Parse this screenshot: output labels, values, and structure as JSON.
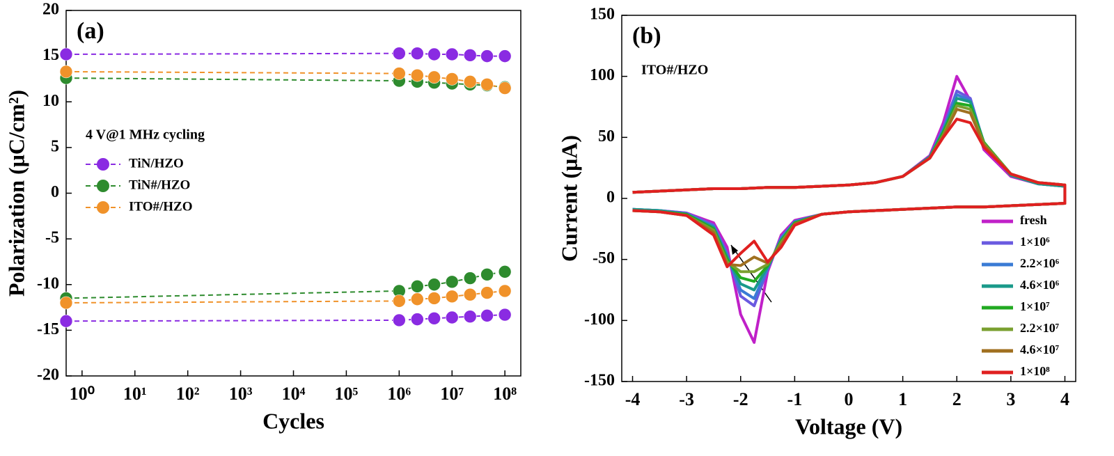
{
  "chart_data": [
    {
      "type": "scatter",
      "annotations": [
        "(a)",
        "4 V@1 MHz cycling"
      ],
      "x_label": "Cycles",
      "y_label": "Polarization (μC/cm²)",
      "xscale": "log",
      "xlim": [
        0.5,
        200000000
      ],
      "ylim": [
        -20,
        20
      ],
      "xticks": [
        {
          "value": 1,
          "label": "10⁰"
        },
        {
          "value": 10,
          "label": "10¹"
        },
        {
          "value": 100,
          "label": "10²"
        },
        {
          "value": 1000,
          "label": "10³"
        },
        {
          "value": 10000,
          "label": "10⁴"
        },
        {
          "value": 100000,
          "label": "10⁵"
        },
        {
          "value": 1000000,
          "label": "10⁶"
        },
        {
          "value": 10000000,
          "label": "10⁷"
        },
        {
          "value": 100000000,
          "label": "10⁸"
        }
      ],
      "yticks": [
        -20,
        -15,
        -10,
        -5,
        0,
        5,
        10,
        15,
        20
      ],
      "legend": "center left",
      "x": [
        0.5,
        1000000,
        2200000,
        4600000,
        10000000,
        22000000,
        46000000,
        100000000
      ],
      "series": [
        {
          "name": "TiN/HZO",
          "color": "#8a2be2",
          "values": [
            15.2,
            15.3,
            15.3,
            15.2,
            15.2,
            15.1,
            15,
            15
          ],
          "neg_values": [
            -14,
            -13.9,
            -13.8,
            -13.7,
            -13.6,
            -13.5,
            -13.4,
            -13.3
          ]
        },
        {
          "name": "TiN#/HZO",
          "color": "#2e8b2e",
          "values": [
            12.6,
            12.3,
            12.2,
            12.1,
            12,
            11.9,
            11.8,
            11.6
          ],
          "neg_values": [
            -11.5,
            -10.7,
            -10.2,
            -10,
            -9.7,
            -9.3,
            -8.9,
            -8.6
          ]
        },
        {
          "name": "ITO#/HZO",
          "color": "#f0922a",
          "values": [
            13.3,
            13.1,
            12.9,
            12.7,
            12.5,
            12.2,
            11.9,
            11.5
          ],
          "neg_values": [
            -12,
            -11.8,
            -11.6,
            -11.5,
            -11.3,
            -11.1,
            -10.9,
            -10.7
          ]
        }
      ]
    },
    {
      "type": "line",
      "annotations": [
        "(b)",
        "ITO#/HZO"
      ],
      "x_label": "Voltage (V)",
      "y_label": "Current (μA)",
      "xlim": [
        -4.2,
        4.2
      ],
      "ylim": [
        -150,
        150
      ],
      "xticks": [
        -4,
        -3,
        -2,
        -1,
        0,
        1,
        2,
        3,
        4
      ],
      "yticks": [
        -150,
        -100,
        -50,
        0,
        50,
        100,
        150
      ],
      "legend": "lower right",
      "x": [
        -4,
        -3.5,
        -3,
        -2.5,
        -2,
        -1.5,
        -1,
        -0.5,
        0,
        0.5,
        1,
        1.5,
        1.75,
        2,
        2.25,
        2.5,
        3,
        3.5,
        4,
        4,
        3.5,
        3,
        2.5,
        2,
        1.5,
        1,
        0.5,
        0,
        -0.5,
        -1,
        -1.25,
        -1.5,
        -1.75,
        -2,
        -2.25,
        -2.5,
        -3,
        -3.5,
        -4
      ],
      "series": [
        {
          "name": "fresh",
          "color": "#c020c8",
          "values": [
            5,
            6,
            7,
            8,
            8,
            9,
            9,
            10,
            11,
            13,
            18,
            35,
            62,
            100,
            80,
            40,
            18,
            12,
            10,
            -4,
            -5,
            -6,
            -7,
            -7,
            -8,
            -9,
            -10,
            -11,
            -13,
            -18,
            -30,
            -60,
            -118,
            -95,
            -40,
            -20,
            -12,
            -10,
            -9
          ]
        },
        {
          "name": "1×10⁶",
          "color": "#6a5ae0",
          "values": [
            5,
            6,
            7,
            8,
            8,
            9,
            9,
            10,
            11,
            13,
            18,
            34,
            58,
            88,
            82,
            45,
            19,
            12,
            10,
            -4,
            -5,
            -6,
            -7,
            -7,
            -8,
            -9,
            -10,
            -11,
            -13,
            -19,
            -32,
            -58,
            -88,
            -80,
            -45,
            -22,
            -12,
            -10,
            -9
          ]
        },
        {
          "name": "2.2×10⁶",
          "color": "#3a7bd5",
          "values": [
            5,
            6,
            7,
            8,
            8,
            9,
            9,
            10,
            11,
            13,
            18,
            34,
            56,
            85,
            80,
            46,
            19,
            12,
            10,
            -4,
            -5,
            -6,
            -7,
            -7,
            -8,
            -9,
            -10,
            -11,
            -13,
            -19,
            -33,
            -57,
            -82,
            -75,
            -47,
            -23,
            -13,
            -10,
            -9
          ]
        },
        {
          "name": "4.6×10⁶",
          "color": "#1a9a8a",
          "values": [
            5,
            6,
            7,
            8,
            8,
            9,
            9,
            10,
            11,
            13,
            18,
            34,
            55,
            82,
            79,
            46,
            19,
            12,
            10,
            -4,
            -5,
            -6,
            -7,
            -7,
            -8,
            -9,
            -10,
            -11,
            -13,
            -20,
            -34,
            -56,
            -75,
            -70,
            -48,
            -24,
            -13,
            -10,
            -9
          ]
        },
        {
          "name": "1×10⁷",
          "color": "#22aa22",
          "values": [
            5,
            6,
            7,
            8,
            8,
            9,
            9,
            10,
            11,
            13,
            18,
            33,
            54,
            78,
            76,
            46,
            20,
            13,
            11,
            -4,
            -5,
            -6,
            -7,
            -7,
            -8,
            -9,
            -10,
            -11,
            -13,
            -20,
            -35,
            -55,
            -68,
            -65,
            -50,
            -25,
            -13,
            -11,
            -10
          ]
        },
        {
          "name": "2.2×10⁷",
          "color": "#7aa030",
          "values": [
            5,
            6,
            7,
            8,
            8,
            9,
            9,
            10,
            11,
            13,
            18,
            33,
            52,
            76,
            73,
            45,
            20,
            13,
            11,
            -4,
            -5,
            -6,
            -7,
            -7,
            -8,
            -9,
            -10,
            -11,
            -13,
            -21,
            -36,
            -54,
            -60,
            -60,
            -52,
            -26,
            -14,
            -11,
            -10
          ]
        },
        {
          "name": "4.6×10⁷",
          "color": "#a07020",
          "values": [
            5,
            6,
            7,
            8,
            8,
            9,
            9,
            10,
            11,
            13,
            18,
            33,
            51,
            73,
            70,
            44,
            20,
            13,
            11,
            -4,
            -5,
            -6,
            -7,
            -7,
            -8,
            -9,
            -10,
            -11,
            -13,
            -21,
            -38,
            -53,
            -48,
            -55,
            -54,
            -28,
            -14,
            -11,
            -10
          ]
        },
        {
          "name": "1×10⁸",
          "color": "#e02020",
          "values": [
            5,
            6,
            7,
            8,
            8,
            9,
            9,
            10,
            11,
            13,
            18,
            33,
            50,
            65,
            62,
            42,
            20,
            13,
            11,
            -4,
            -5,
            -6,
            -7,
            -7,
            -8,
            -9,
            -10,
            -11,
            -13,
            -22,
            -40,
            -52,
            -35,
            -45,
            -56,
            -30,
            -14,
            -11,
            -10
          ]
        }
      ]
    }
  ]
}
